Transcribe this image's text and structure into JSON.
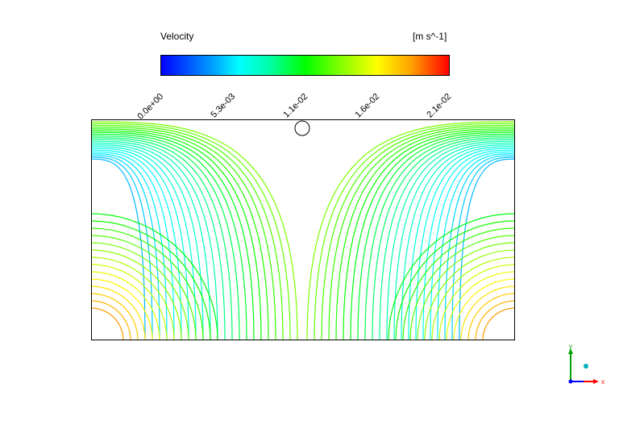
{
  "legend": {
    "title": "Velocity",
    "unit": "[m s^-1]",
    "ticks": [
      "0.0e+00",
      "5.3e-03",
      "1.1e-02",
      "1.6e-02",
      "2.1e-02"
    ],
    "colormap": [
      "#0000ff",
      "#00a0ff",
      "#00ffff",
      "#00ffb0",
      "#00ff00",
      "#80ff00",
      "#ffff00",
      "#ffa000",
      "#ff0000"
    ]
  },
  "plot": {
    "type": "streamlines"
  },
  "triad": {
    "x_label": "x",
    "y_label": "y"
  }
}
